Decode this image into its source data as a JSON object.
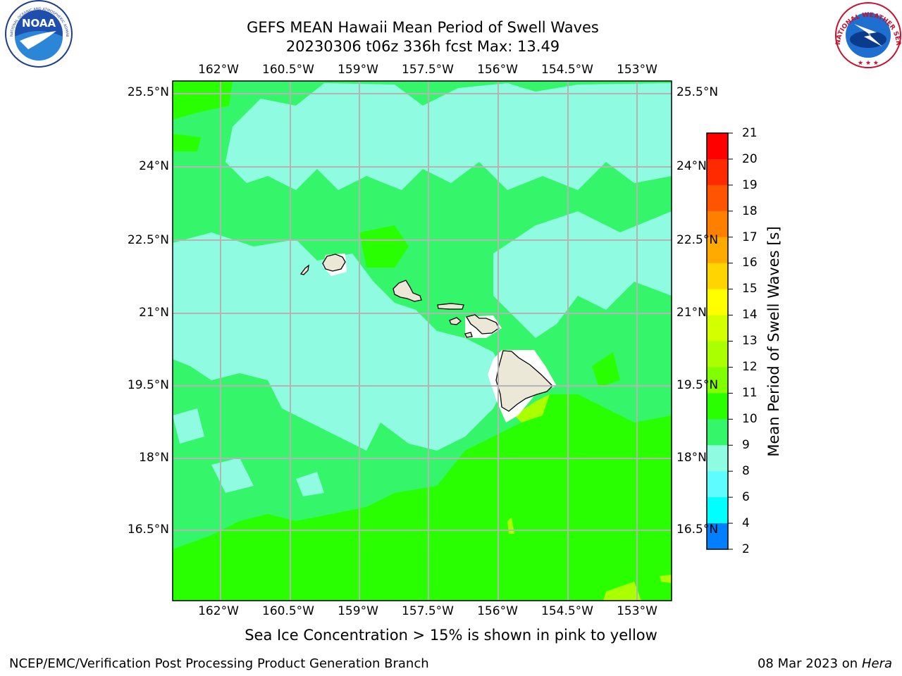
{
  "title": {
    "line1": "GEFS MEAN Hawaii Mean Period of Swell Waves",
    "line2": "20230306 t06z 336h fcst   Max: 13.49"
  },
  "map": {
    "lon_labels": [
      "162°W",
      "160.5°W",
      "159°W",
      "157.5°W",
      "156°W",
      "154.5°W",
      "153°W"
    ],
    "lat_labels_left": [
      "25.5°N",
      "24°N",
      "22.5°N",
      "21°N",
      "19.5°N",
      "18°N",
      "16.5°N"
    ],
    "lat_labels_right": [
      "25.5°N",
      "24°N",
      "22.5°N",
      "21°N",
      "19.5°N",
      "18°N",
      "16.5°N"
    ]
  },
  "colorbar": {
    "label": "Mean Period of Swell Waves [s]",
    "ticks": [
      "21",
      "20",
      "19",
      "18",
      "17",
      "16",
      "15",
      "14",
      "13",
      "12",
      "11",
      "10",
      "9",
      "8",
      "6",
      "4",
      "2"
    ],
    "colors": [
      "#ff0000",
      "#ff2a00",
      "#ff5500",
      "#ff7f00",
      "#ffaa00",
      "#ffd400",
      "#ffff00",
      "#d4ff00",
      "#aaff00",
      "#7fff00",
      "#2aff00",
      "#35f56a",
      "#8ffbe0",
      "#5ffcff",
      "#00ffff",
      "#0080ff",
      "#0000ff"
    ]
  },
  "palette": {
    "ocean_green": "#35f56a",
    "bright_green": "#2aff00",
    "aqua": "#8ffbe0",
    "land": "#ece8d8",
    "grid": "#b4b4b4"
  },
  "logos": {
    "noaa_text": "NOAA",
    "noaa_ring": "NATIONAL OCEANIC AND ATMOSPHERIC ADMINISTRATION • U.S. DEPARTMENT OF COMMERCE",
    "nws_ring": "NATIONAL WEATHER SERVICE"
  },
  "footer": {
    "note": "Sea Ice Concentration > 15% is shown in pink to yellow",
    "left": "NCEP/EMC/Verification Post Processing Product Generation Branch",
    "right_date": "08 Mar 2023 on",
    "right_host": "Hera"
  }
}
